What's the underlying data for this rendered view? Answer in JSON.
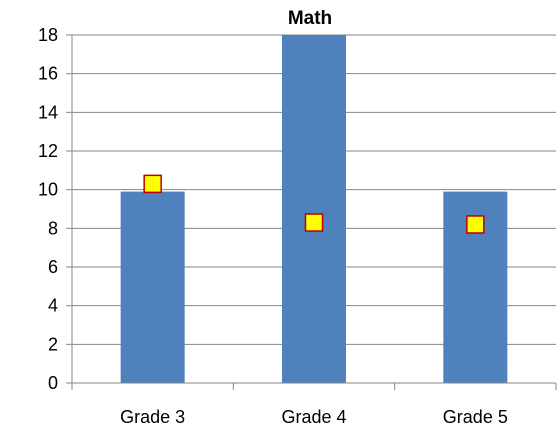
{
  "chart_data": {
    "type": "bar",
    "title": "Math",
    "xlabel": "",
    "ylabel": "",
    "categories": [
      "Grade 3",
      "Grade 4",
      "Grade 5"
    ],
    "series": [
      {
        "kind": "bar",
        "values": [
          9.9,
          18,
          9.9
        ],
        "color": "#4F81BD"
      },
      {
        "kind": "marker",
        "marker": "square",
        "values": [
          10.3,
          8.3,
          8.2
        ],
        "color": "#FFFF00",
        "edge_color": "#C00000"
      }
    ],
    "ylim": [
      0,
      18
    ],
    "yticks": [
      "0",
      "2",
      "4",
      "6",
      "8",
      "10",
      "12",
      "14",
      "16",
      "18"
    ],
    "grid": true,
    "legend": "none"
  }
}
